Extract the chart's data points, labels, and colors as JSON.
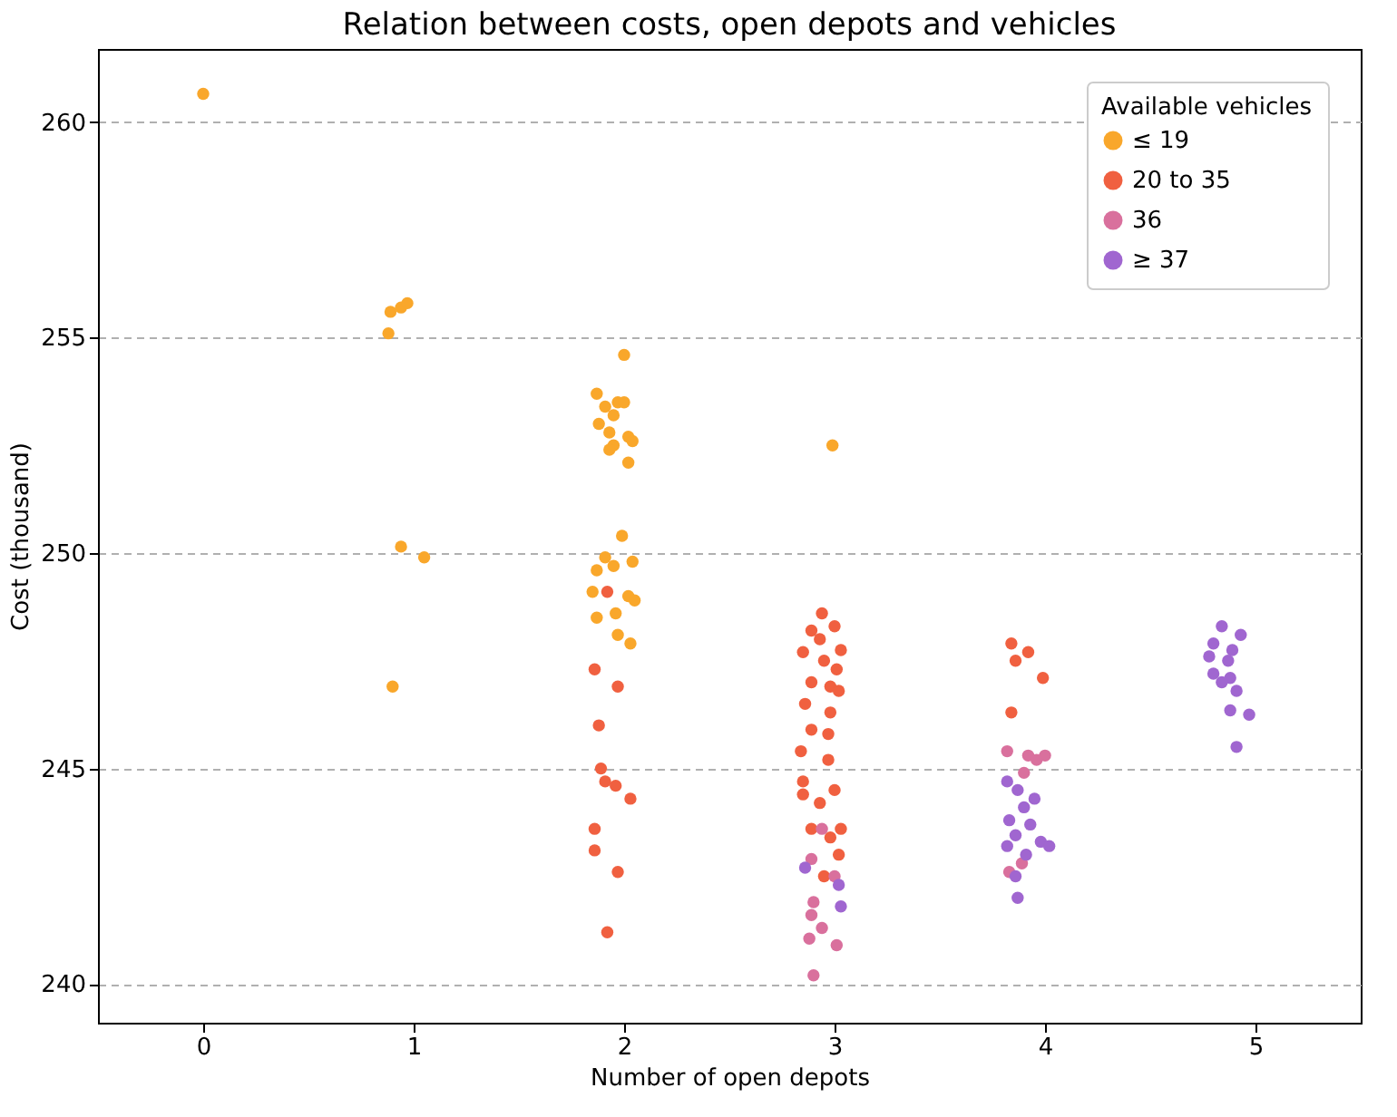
{
  "chart_data": {
    "type": "scatter",
    "title": "Relation between costs, open depots and vehicles",
    "xlabel": "Number of open depots",
    "ylabel": "Cost (thousand)",
    "legend_title": "Available vehicles",
    "legend": "top right",
    "grid": "y",
    "marker": "circle",
    "xlim": [
      -0.5,
      5.5
    ],
    "xticks": [
      0,
      1,
      2,
      3,
      4,
      5
    ],
    "ylim": [
      239.1,
      261.7
    ],
    "yticks": [
      240,
      245,
      250,
      255,
      260
    ],
    "series": [
      {
        "name": "≤ 19",
        "color": "#f9a72b",
        "x": [
          0.0,
          0.88,
          0.89,
          0.94,
          0.97,
          0.94,
          1.05,
          0.9,
          2.0,
          1.87,
          1.97,
          1.91,
          2.0,
          1.95,
          1.88,
          1.93,
          2.02,
          1.95,
          2.04,
          1.93,
          2.02,
          1.99,
          1.91,
          1.95,
          2.04,
          1.87,
          1.85,
          2.02,
          2.05,
          1.87,
          1.96,
          1.97,
          2.03,
          2.99
        ],
        "values": [
          260.66,
          255.1,
          255.6,
          255.7,
          255.8,
          250.15,
          249.9,
          246.9,
          254.6,
          253.7,
          253.5,
          253.4,
          253.5,
          253.2,
          253.0,
          252.8,
          252.7,
          252.5,
          252.6,
          252.4,
          252.1,
          250.4,
          249.9,
          249.7,
          249.8,
          249.6,
          249.1,
          249.0,
          248.9,
          248.5,
          248.6,
          248.1,
          247.9,
          252.5
        ]
      },
      {
        "name": "20 to 35",
        "color": "#f06040",
        "x": [
          1.92,
          1.86,
          1.97,
          1.88,
          1.89,
          1.91,
          1.96,
          1.86,
          1.86,
          1.97,
          1.92,
          2.03,
          2.94,
          2.89,
          3.0,
          2.93,
          2.85,
          3.03,
          2.95,
          3.01,
          2.89,
          2.98,
          3.02,
          2.86,
          2.98,
          2.89,
          2.97,
          2.84,
          2.97,
          2.85,
          3.0,
          2.85,
          2.93,
          2.89,
          3.03,
          2.98,
          3.02,
          2.95,
          3.84,
          3.92,
          3.86,
          3.99,
          3.84
        ],
        "values": [
          249.1,
          247.3,
          246.9,
          246.0,
          245.0,
          244.7,
          244.6,
          243.6,
          243.1,
          242.6,
          241.2,
          244.3,
          248.6,
          248.2,
          248.3,
          248.0,
          247.7,
          247.75,
          247.5,
          247.3,
          247.0,
          246.9,
          246.8,
          246.5,
          246.3,
          245.9,
          245.8,
          245.4,
          245.2,
          244.7,
          244.5,
          244.4,
          244.2,
          243.6,
          243.6,
          243.4,
          243.0,
          242.5,
          247.9,
          247.7,
          247.5,
          247.1,
          246.3
        ]
      },
      {
        "name": "36",
        "color": "#d9709d",
        "x": [
          2.94,
          2.89,
          3.0,
          2.9,
          2.89,
          2.94,
          2.88,
          3.01,
          2.9,
          3.82,
          3.92,
          4.0,
          3.96,
          3.9,
          3.89,
          3.83
        ],
        "values": [
          243.6,
          242.9,
          242.5,
          241.9,
          241.6,
          241.3,
          241.05,
          240.9,
          240.2,
          245.4,
          245.3,
          245.3,
          245.2,
          244.9,
          242.8,
          242.6
        ]
      },
      {
        "name": "≥ 37",
        "color": "#a066d0",
        "x": [
          2.86,
          3.03,
          3.02,
          3.82,
          3.87,
          3.95,
          3.9,
          3.83,
          3.93,
          3.86,
          3.98,
          4.02,
          3.82,
          3.91,
          3.86,
          3.87,
          4.84,
          4.93,
          4.8,
          4.89,
          4.78,
          4.87,
          4.8,
          4.88,
          4.84,
          4.91,
          4.88,
          4.97,
          4.91
        ],
        "values": [
          242.7,
          241.8,
          242.3,
          244.7,
          244.5,
          244.3,
          244.1,
          243.8,
          243.7,
          243.45,
          243.3,
          243.2,
          243.2,
          243.0,
          242.5,
          242.0,
          248.3,
          248.1,
          247.9,
          247.75,
          247.6,
          247.5,
          247.2,
          247.1,
          247.0,
          246.8,
          246.35,
          246.25,
          245.5
        ]
      }
    ]
  }
}
